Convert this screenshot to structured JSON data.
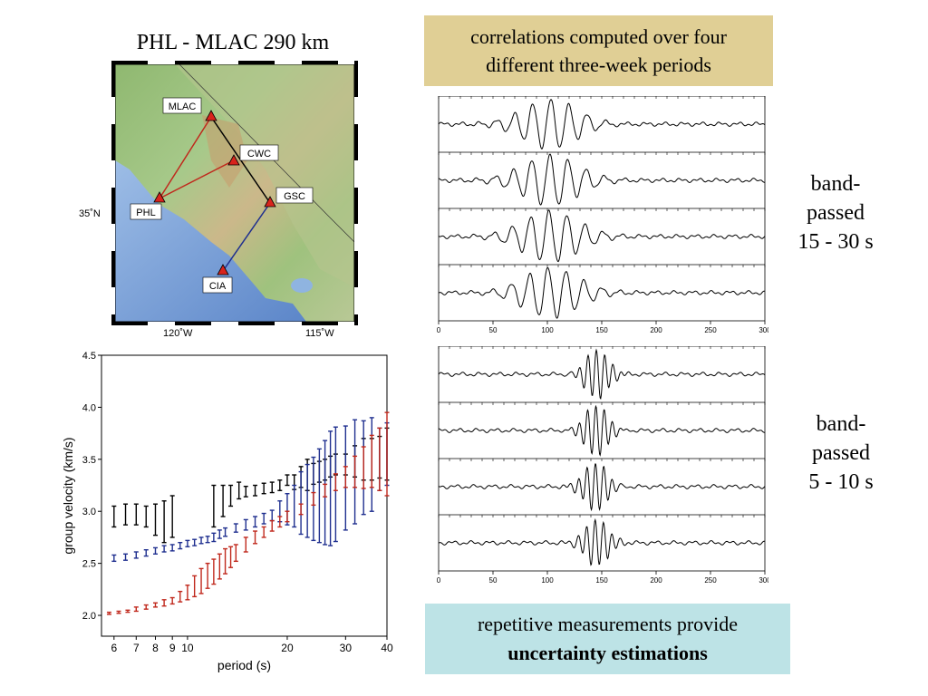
{
  "map": {
    "title": "PHL - MLAC 290 km",
    "stations": [
      "MLAC",
      "CWC",
      "GSC",
      "PHL",
      "CIA"
    ],
    "lat_label": "35˚N",
    "lon_labels": [
      "120˚W",
      "115˚W"
    ]
  },
  "caption_top": {
    "line1": "correlations computed over four",
    "line2": "different three-week periods"
  },
  "caption_bottom": {
    "line1": "repetitive measurements provide",
    "line2": "uncertainty estimations"
  },
  "band_a": {
    "line1": "band-",
    "line2": "passed",
    "line3": "15 - 30 s"
  },
  "band_b": {
    "line1": "band-",
    "line2": "passed",
    "line3": "5 - 10 s"
  },
  "waveform_axis_ticks": [
    "0",
    "50",
    "100",
    "150",
    "200",
    "250",
    "300"
  ],
  "colors": {
    "black_series": "#000000",
    "blue_series": "#1f2f8f",
    "red_series": "#c0281c"
  },
  "chart_data": {
    "type": "scatter",
    "title": "",
    "xlabel": "period (s)",
    "ylabel": "group velocity (km/s)",
    "xscale": "log",
    "xlim": [
      5.5,
      40
    ],
    "ylim": [
      1.8,
      4.5
    ],
    "xticks": [
      "6",
      "7",
      "8",
      "9",
      "10",
      "20",
      "30",
      "40"
    ],
    "yticks": [
      "2.0",
      "2.5",
      "3.0",
      "3.5",
      "4.0",
      "4.5"
    ],
    "series": [
      {
        "color": "#000000",
        "x": [
          6,
          6.5,
          7,
          7.5,
          8,
          8.5,
          9,
          12,
          12.8,
          13.5,
          14.3,
          15,
          16,
          17,
          18,
          19,
          20,
          21,
          22,
          23,
          24,
          25,
          26,
          27,
          28,
          30,
          32,
          34,
          36,
          38,
          40
        ],
        "y": [
          2.95,
          2.97,
          2.97,
          2.95,
          2.92,
          2.9,
          2.95,
          3.05,
          3.1,
          3.15,
          3.2,
          3.19,
          3.2,
          3.22,
          3.23,
          3.25,
          3.3,
          3.28,
          3.33,
          3.35,
          3.36,
          3.38,
          3.4,
          3.43,
          3.45,
          3.45,
          3.48,
          3.5,
          3.5,
          3.52,
          3.55
        ],
        "err": [
          0.1,
          0.1,
          0.1,
          0.1,
          0.15,
          0.2,
          0.2,
          0.2,
          0.15,
          0.1,
          0.08,
          0.05,
          0.05,
          0.05,
          0.05,
          0.05,
          0.05,
          0.07,
          0.1,
          0.15,
          0.1,
          0.1,
          0.1,
          0.1,
          0.1,
          0.1,
          0.15,
          0.2,
          0.2,
          0.2,
          0.25
        ]
      },
      {
        "color": "#1f2f8f",
        "x": [
          6,
          6.5,
          7,
          7.5,
          8,
          8.5,
          9,
          9.5,
          10,
          10.5,
          11,
          11.5,
          12,
          12.5,
          13,
          14,
          15,
          16,
          17,
          18,
          19,
          20,
          21,
          22,
          23,
          24,
          25,
          26,
          27,
          28,
          30,
          32,
          34,
          36,
          38,
          40
        ],
        "y": [
          2.55,
          2.56,
          2.58,
          2.6,
          2.62,
          2.64,
          2.65,
          2.67,
          2.69,
          2.7,
          2.72,
          2.73,
          2.75,
          2.78,
          2.8,
          2.84,
          2.87,
          2.9,
          2.93,
          2.96,
          3.0,
          3.02,
          3.05,
          3.08,
          3.1,
          3.12,
          3.15,
          3.18,
          3.22,
          3.26,
          3.32,
          3.38,
          3.42,
          3.45,
          3.5,
          3.55
        ],
        "err": [
          0.03,
          0.03,
          0.03,
          0.03,
          0.03,
          0.03,
          0.03,
          0.03,
          0.03,
          0.03,
          0.03,
          0.03,
          0.04,
          0.04,
          0.04,
          0.04,
          0.05,
          0.05,
          0.05,
          0.05,
          0.1,
          0.15,
          0.2,
          0.3,
          0.35,
          0.4,
          0.45,
          0.5,
          0.55,
          0.55,
          0.5,
          0.5,
          0.45,
          0.45,
          0.3,
          0.3
        ]
      },
      {
        "color": "#c0281c",
        "x": [
          5.8,
          6.2,
          6.6,
          7,
          7.5,
          8,
          8.5,
          9,
          9.5,
          10,
          10.5,
          11,
          11.5,
          12,
          12.5,
          13,
          13.5,
          14,
          15,
          16,
          17,
          18,
          19,
          20,
          22,
          24,
          26,
          28,
          30,
          32,
          34,
          36,
          38,
          40
        ],
        "y": [
          2.02,
          2.03,
          2.04,
          2.06,
          2.08,
          2.1,
          2.12,
          2.14,
          2.18,
          2.22,
          2.28,
          2.33,
          2.38,
          2.42,
          2.47,
          2.52,
          2.56,
          2.6,
          2.68,
          2.75,
          2.8,
          2.86,
          2.9,
          2.95,
          3.02,
          3.12,
          3.2,
          3.28,
          3.33,
          3.38,
          3.42,
          3.48,
          3.5,
          3.55
        ],
        "err": [
          0.01,
          0.01,
          0.01,
          0.02,
          0.02,
          0.02,
          0.03,
          0.03,
          0.05,
          0.07,
          0.1,
          0.12,
          0.12,
          0.12,
          0.12,
          0.12,
          0.1,
          0.08,
          0.07,
          0.06,
          0.05,
          0.05,
          0.05,
          0.05,
          0.05,
          0.06,
          0.06,
          0.08,
          0.1,
          0.15,
          0.2,
          0.25,
          0.3,
          0.4
        ]
      }
    ]
  }
}
